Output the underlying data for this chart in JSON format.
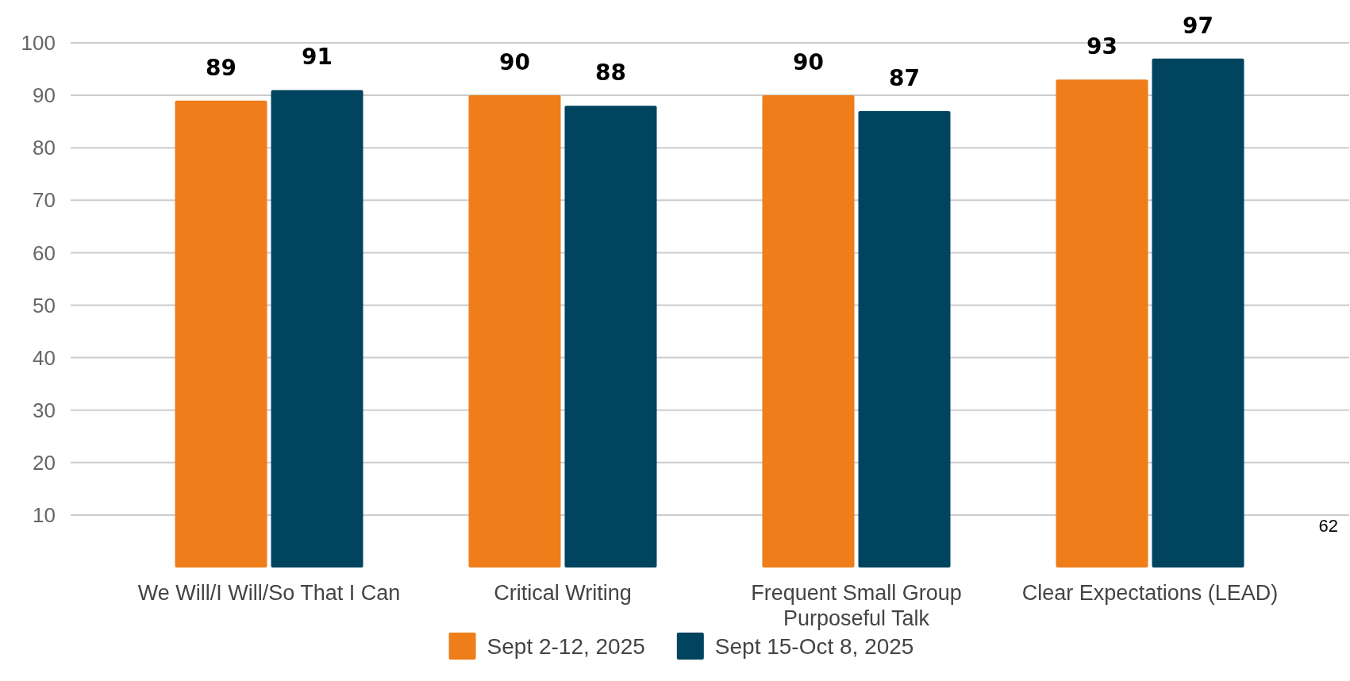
{
  "chart_data": {
    "type": "bar",
    "categories": [
      "We Will/I Will/So That I Can",
      "Critical Writing",
      "Frequent Small Group Purposeful Talk",
      "Clear Expectations (LEAD)"
    ],
    "series": [
      {
        "name": "Sept 2-12, 2025",
        "color": "#ee7d1a",
        "values": [
          89,
          90,
          90,
          93
        ]
      },
      {
        "name": "Sept 15-Oct 8, 2025",
        "color": "#00445f",
        "values": [
          91,
          88,
          87,
          97
        ]
      }
    ],
    "ylim": [
      0,
      100
    ],
    "yticks": [
      10,
      20,
      30,
      40,
      50,
      60,
      70,
      80,
      90,
      100
    ],
    "grid": "y",
    "legend": "bottom",
    "data_labels": true,
    "annotations": [
      "62"
    ]
  }
}
